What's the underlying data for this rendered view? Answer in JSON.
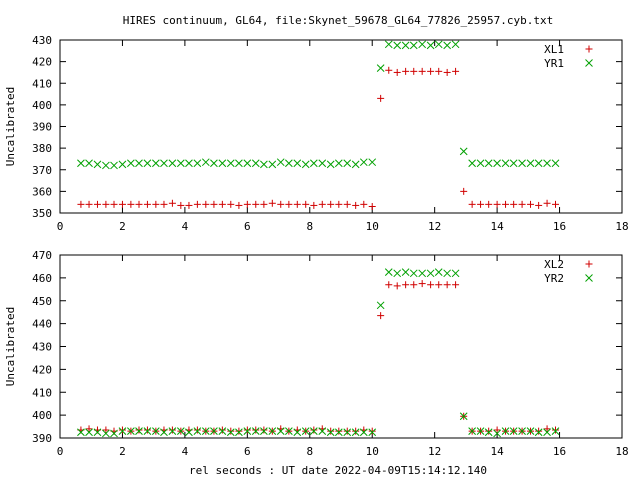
{
  "title": "HIRES continuum, GL64, file:Skynet_59678_GL64_77826_25957.cyb.txt",
  "xlabel": "rel seconds : UT date 2022-04-09T15:14:12.140",
  "colors": {
    "red": "#d00000",
    "green": "#00a000"
  },
  "chart_data": [
    {
      "type": "scatter",
      "ylabel": "Uncalibrated",
      "xlim": [
        0,
        18
      ],
      "ylim": [
        350,
        430
      ],
      "xticks": [
        0,
        2,
        4,
        6,
        8,
        10,
        12,
        14,
        16,
        18
      ],
      "yticks": [
        350,
        360,
        370,
        380,
        390,
        400,
        410,
        420,
        430
      ],
      "legend_position": "top-right",
      "series": [
        {
          "name": "XL1",
          "marker": "plus",
          "color": "#d00000",
          "points": [
            [
              0.67,
              354
            ],
            [
              0.93,
              354
            ],
            [
              1.2,
              354
            ],
            [
              1.47,
              354
            ],
            [
              1.73,
              354
            ],
            [
              2.0,
              354
            ],
            [
              2.27,
              354
            ],
            [
              2.53,
              354
            ],
            [
              2.8,
              354
            ],
            [
              3.07,
              354
            ],
            [
              3.33,
              354
            ],
            [
              3.6,
              354.5
            ],
            [
              3.87,
              353.5
            ],
            [
              4.13,
              353.5
            ],
            [
              4.4,
              354
            ],
            [
              4.67,
              354
            ],
            [
              4.93,
              354
            ],
            [
              5.2,
              354
            ],
            [
              5.47,
              354
            ],
            [
              5.73,
              353.5
            ],
            [
              6.0,
              354
            ],
            [
              6.27,
              354
            ],
            [
              6.53,
              354
            ],
            [
              6.8,
              354.5
            ],
            [
              7.07,
              354
            ],
            [
              7.33,
              354
            ],
            [
              7.6,
              354
            ],
            [
              7.87,
              354
            ],
            [
              8.13,
              353.5
            ],
            [
              8.4,
              354
            ],
            [
              8.67,
              354
            ],
            [
              8.93,
              354
            ],
            [
              9.2,
              354
            ],
            [
              9.47,
              353.5
            ],
            [
              9.73,
              354
            ],
            [
              10.0,
              353
            ],
            [
              10.27,
              403
            ],
            [
              10.53,
              416
            ],
            [
              10.8,
              415
            ],
            [
              11.07,
              415.5
            ],
            [
              11.33,
              415.5
            ],
            [
              11.6,
              415.5
            ],
            [
              11.87,
              415.5
            ],
            [
              12.13,
              415.5
            ],
            [
              12.4,
              415
            ],
            [
              12.67,
              415.5
            ],
            [
              12.93,
              360
            ],
            [
              13.2,
              354
            ],
            [
              13.47,
              354
            ],
            [
              13.73,
              354
            ],
            [
              14.0,
              354
            ],
            [
              14.27,
              354
            ],
            [
              14.53,
              354
            ],
            [
              14.8,
              354
            ],
            [
              15.07,
              354
            ],
            [
              15.33,
              353.5
            ],
            [
              15.6,
              354.5
            ],
            [
              15.87,
              354
            ]
          ]
        },
        {
          "name": "YR1",
          "marker": "cross",
          "color": "#00a000",
          "points": [
            [
              0.67,
              373
            ],
            [
              0.93,
              373
            ],
            [
              1.2,
              372.5
            ],
            [
              1.47,
              372
            ],
            [
              1.73,
              372
            ],
            [
              2.0,
              372.5
            ],
            [
              2.27,
              373
            ],
            [
              2.53,
              373
            ],
            [
              2.8,
              373
            ],
            [
              3.07,
              373
            ],
            [
              3.33,
              373
            ],
            [
              3.6,
              373
            ],
            [
              3.87,
              373
            ],
            [
              4.13,
              373
            ],
            [
              4.4,
              373
            ],
            [
              4.67,
              373.5
            ],
            [
              4.93,
              373
            ],
            [
              5.2,
              373
            ],
            [
              5.47,
              373
            ],
            [
              5.73,
              373
            ],
            [
              6.0,
              373
            ],
            [
              6.27,
              373
            ],
            [
              6.53,
              372.5
            ],
            [
              6.8,
              372.5
            ],
            [
              7.07,
              373.5
            ],
            [
              7.33,
              373
            ],
            [
              7.6,
              373
            ],
            [
              7.87,
              372.5
            ],
            [
              8.13,
              373
            ],
            [
              8.4,
              373
            ],
            [
              8.67,
              372.5
            ],
            [
              8.93,
              373
            ],
            [
              9.2,
              373
            ],
            [
              9.47,
              372.5
            ],
            [
              9.73,
              373.5
            ],
            [
              10.0,
              373.5
            ],
            [
              10.27,
              417
            ],
            [
              10.53,
              428
            ],
            [
              10.8,
              427.5
            ],
            [
              11.07,
              427.5
            ],
            [
              11.33,
              427.5
            ],
            [
              11.6,
              428
            ],
            [
              11.87,
              427.5
            ],
            [
              12.13,
              428
            ],
            [
              12.4,
              427.5
            ],
            [
              12.67,
              428
            ],
            [
              12.93,
              378.5
            ],
            [
              13.2,
              373
            ],
            [
              13.47,
              373
            ],
            [
              13.73,
              373
            ],
            [
              14.0,
              373
            ],
            [
              14.27,
              373
            ],
            [
              14.53,
              373
            ],
            [
              14.8,
              373
            ],
            [
              15.07,
              373
            ],
            [
              15.33,
              373
            ],
            [
              15.6,
              373
            ],
            [
              15.87,
              373
            ]
          ]
        }
      ]
    },
    {
      "type": "scatter",
      "ylabel": "Uncalibrated",
      "xlim": [
        0,
        18
      ],
      "ylim": [
        390,
        470
      ],
      "xticks": [
        0,
        2,
        4,
        6,
        8,
        10,
        12,
        14,
        16,
        18
      ],
      "yticks": [
        390,
        400,
        410,
        420,
        430,
        440,
        450,
        460,
        470
      ],
      "legend_position": "top-right",
      "series": [
        {
          "name": "XL2",
          "marker": "plus",
          "color": "#d00000",
          "points": [
            [
              0.67,
              393.5
            ],
            [
              0.93,
              394
            ],
            [
              1.2,
              393.5
            ],
            [
              1.47,
              393.5
            ],
            [
              1.73,
              393
            ],
            [
              2.0,
              393.5
            ],
            [
              2.27,
              393
            ],
            [
              2.53,
              393.5
            ],
            [
              2.8,
              393.5
            ],
            [
              3.07,
              393
            ],
            [
              3.33,
              393.5
            ],
            [
              3.6,
              393.5
            ],
            [
              3.87,
              393
            ],
            [
              4.13,
              393.5
            ],
            [
              4.4,
              393.5
            ],
            [
              4.67,
              393
            ],
            [
              4.93,
              393
            ],
            [
              5.2,
              393.5
            ],
            [
              5.47,
              393
            ],
            [
              5.73,
              393
            ],
            [
              6.0,
              393.5
            ],
            [
              6.27,
              393.5
            ],
            [
              6.53,
              393.5
            ],
            [
              6.8,
              393
            ],
            [
              7.07,
              394
            ],
            [
              7.33,
              393
            ],
            [
              7.6,
              393.5
            ],
            [
              7.87,
              393
            ],
            [
              8.13,
              393.5
            ],
            [
              8.4,
              394
            ],
            [
              8.67,
              393
            ],
            [
              8.93,
              393
            ],
            [
              9.2,
              393
            ],
            [
              9.47,
              393
            ],
            [
              9.73,
              393.5
            ],
            [
              10.0,
              393
            ],
            [
              10.27,
              443.5
            ],
            [
              10.53,
              457
            ],
            [
              10.8,
              456.5
            ],
            [
              11.07,
              457
            ],
            [
              11.33,
              457
            ],
            [
              11.6,
              457.5
            ],
            [
              11.87,
              457
            ],
            [
              12.13,
              457
            ],
            [
              12.4,
              457
            ],
            [
              12.67,
              457
            ],
            [
              12.93,
              399.5
            ],
            [
              13.2,
              393
            ],
            [
              13.47,
              393
            ],
            [
              13.73,
              393
            ],
            [
              14.0,
              393.5
            ],
            [
              14.27,
              393
            ],
            [
              14.53,
              393
            ],
            [
              14.8,
              393
            ],
            [
              15.07,
              393
            ],
            [
              15.33,
              393
            ],
            [
              15.6,
              394
            ],
            [
              15.87,
              393.5
            ]
          ]
        },
        {
          "name": "YR2",
          "marker": "cross",
          "color": "#00a000",
          "points": [
            [
              0.67,
              392.5
            ],
            [
              0.93,
              392.5
            ],
            [
              1.2,
              392.5
            ],
            [
              1.47,
              392
            ],
            [
              1.73,
              392
            ],
            [
              2.0,
              393
            ],
            [
              2.27,
              393
            ],
            [
              2.53,
              393
            ],
            [
              2.8,
              393
            ],
            [
              3.07,
              393
            ],
            [
              3.33,
              392.5
            ],
            [
              3.6,
              393
            ],
            [
              3.87,
              393
            ],
            [
              4.13,
              392.5
            ],
            [
              4.4,
              393
            ],
            [
              4.67,
              393
            ],
            [
              4.93,
              393
            ],
            [
              5.2,
              393
            ],
            [
              5.47,
              392.5
            ],
            [
              5.73,
              392.5
            ],
            [
              6.0,
              393
            ],
            [
              6.27,
              393
            ],
            [
              6.53,
              393
            ],
            [
              6.8,
              393
            ],
            [
              7.07,
              393
            ],
            [
              7.33,
              393
            ],
            [
              7.6,
              392.5
            ],
            [
              7.87,
              393
            ],
            [
              8.13,
              393
            ],
            [
              8.4,
              393
            ],
            [
              8.67,
              392.5
            ],
            [
              8.93,
              392.5
            ],
            [
              9.2,
              392.5
            ],
            [
              9.47,
              392.5
            ],
            [
              9.73,
              392.5
            ],
            [
              10.0,
              392.5
            ],
            [
              10.27,
              448
            ],
            [
              10.53,
              462.5
            ],
            [
              10.8,
              462
            ],
            [
              11.07,
              462.5
            ],
            [
              11.33,
              462
            ],
            [
              11.6,
              462
            ],
            [
              11.87,
              462
            ],
            [
              12.13,
              462.5
            ],
            [
              12.4,
              462
            ],
            [
              12.67,
              462
            ],
            [
              12.93,
              399.5
            ],
            [
              13.2,
              393
            ],
            [
              13.47,
              393
            ],
            [
              13.73,
              392.5
            ],
            [
              14.0,
              392
            ],
            [
              14.27,
              393
            ],
            [
              14.53,
              393
            ],
            [
              14.8,
              393
            ],
            [
              15.07,
              393
            ],
            [
              15.33,
              392.5
            ],
            [
              15.6,
              392.5
            ],
            [
              15.87,
              393
            ]
          ]
        }
      ]
    }
  ]
}
